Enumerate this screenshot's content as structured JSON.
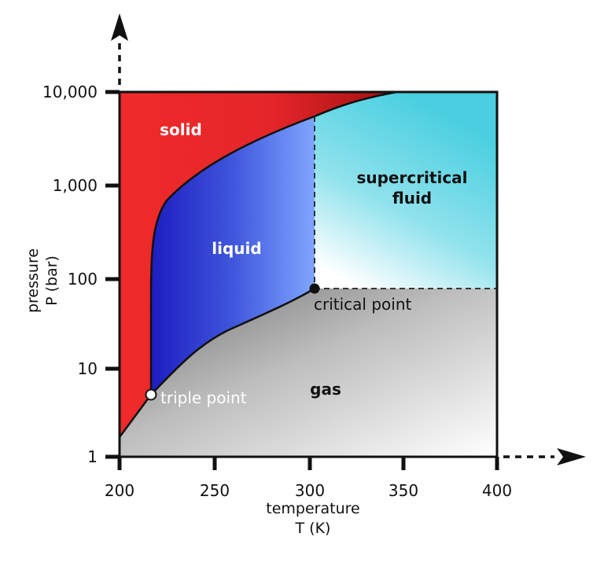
{
  "diagram": {
    "x_axis": {
      "ticks": [
        "200",
        "250",
        "300",
        "350",
        "400"
      ],
      "title_line1": "temperature",
      "title_line2": "T (K)"
    },
    "y_axis": {
      "ticks": [
        "1",
        "10",
        "100",
        "1,000",
        "10,000"
      ],
      "title_line1": "pressure",
      "title_line2": "P (bar)"
    },
    "regions": {
      "solid": "solid",
      "liquid": "liquid",
      "supercritical_line1": "supercritical",
      "supercritical_line2": "fluid",
      "gas": "gas"
    },
    "points": {
      "triple": "triple point",
      "critical": "critical point"
    },
    "colors": {
      "solid": "#e8262a",
      "liquid": "#2b35c8",
      "supercritical": "#4fd3e2",
      "gas": "#8f8f8f"
    }
  }
}
